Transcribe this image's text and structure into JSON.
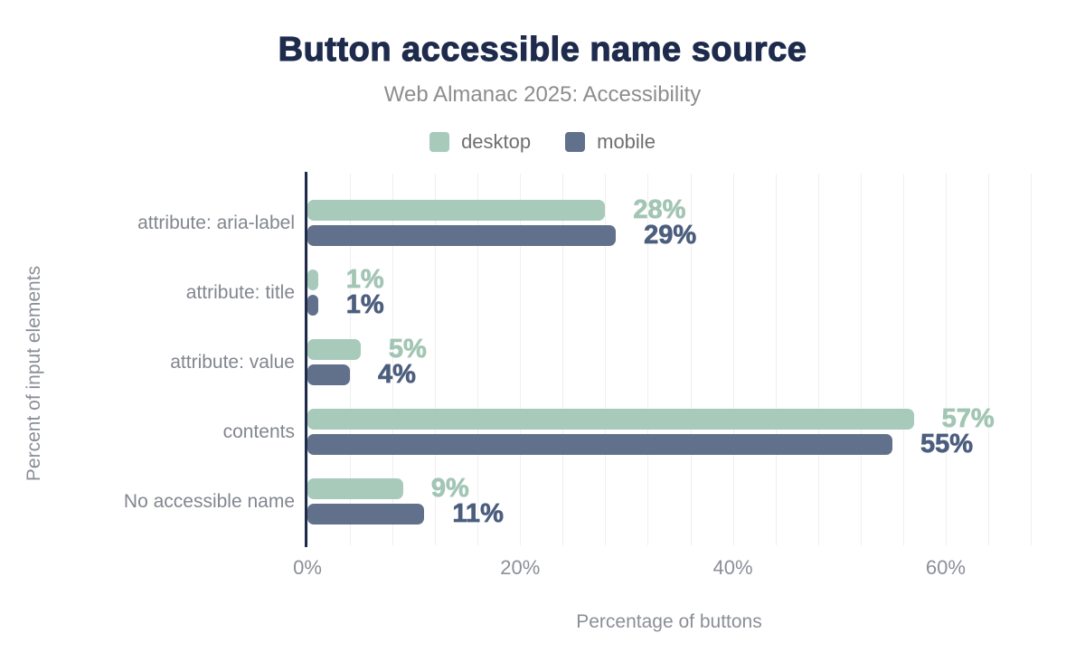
{
  "title": "Button accessible name source",
  "subtitle": "Web Almanac 2025: Accessibility",
  "axes": {
    "xlabel": "Percentage of buttons",
    "ylabel": "Percent of input elements"
  },
  "colors": {
    "title": "#1e2b4d",
    "axis_line": "#1e2b49",
    "gridline": "#f0efef",
    "muted_text": "#8b8f96",
    "desktop": "#a7cabb",
    "mobile": "#61718b"
  },
  "chart_data": {
    "type": "bar",
    "orientation": "horizontal",
    "title": "Button accessible name source",
    "subtitle": "Web Almanac 2025: Accessibility",
    "xlabel": "Percentage of buttons",
    "ylabel": "Percent of input elements",
    "categories": [
      "attribute: aria-label",
      "attribute: title",
      "attribute: value",
      "contents",
      "No accessible name"
    ],
    "series": [
      {
        "name": "desktop",
        "color": "#a7cabb",
        "label_color": "#a2c5b4",
        "values": [
          28,
          1,
          5,
          57,
          9
        ]
      },
      {
        "name": "mobile",
        "color": "#61718b",
        "label_color": "#4c5e7e",
        "values": [
          29,
          1,
          4,
          55,
          11
        ]
      }
    ],
    "value_suffix": "%",
    "xlim": [
      0,
      68
    ],
    "grid_step": 4,
    "x_ticks": [
      {
        "value": 0,
        "label": "0%"
      },
      {
        "value": 20,
        "label": "20%"
      },
      {
        "value": 40,
        "label": "40%"
      },
      {
        "value": 60,
        "label": "60%"
      }
    ],
    "legend_position": "top",
    "grid": true
  }
}
